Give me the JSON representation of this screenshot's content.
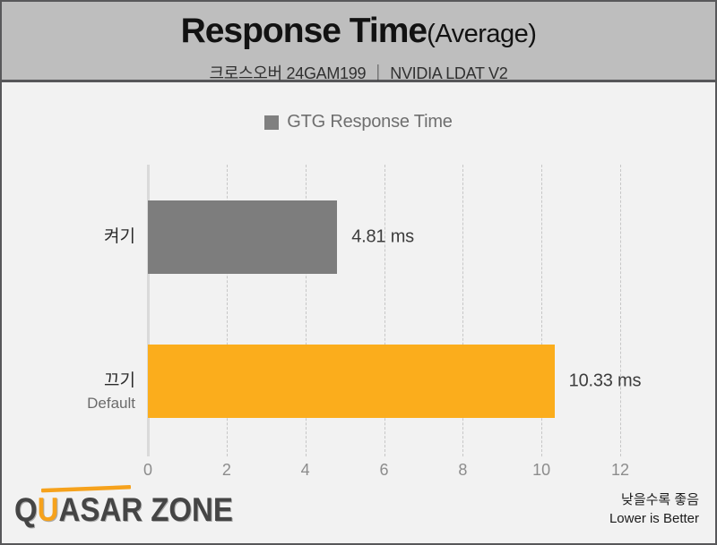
{
  "header": {
    "title": "Response Time",
    "title_suffix": "(Average)",
    "subtitle": "크로스오버 24GAM199 ｜ NVIDIA LDAT V2"
  },
  "legend": {
    "label": "GTG Response Time",
    "swatch_color": "#808080"
  },
  "chart_data": {
    "type": "bar",
    "orientation": "horizontal",
    "title": "Response Time (Average)",
    "subtitle": "크로스오버 24GAM199 ｜ NVIDIA LDAT V2",
    "legend_entries": [
      "GTG Response Time"
    ],
    "legend_position": "top-center",
    "categories": [
      {
        "label": "켜기",
        "sublabel": ""
      },
      {
        "label": "끄기",
        "sublabel": "Default"
      }
    ],
    "values": [
      4.81,
      10.33
    ],
    "value_labels": [
      "4.81 ms",
      "10.33 ms"
    ],
    "bar_colors": [
      "#7d7d7d",
      "#fbad1c"
    ],
    "unit": "ms",
    "xlabel": "",
    "ylabel": "",
    "xlim": [
      0,
      12
    ],
    "xticks": [
      0,
      2,
      4,
      6,
      8,
      10,
      12
    ],
    "grid": "vertical-dashed"
  },
  "footer": {
    "logo_q": "Q",
    "logo_u": "U",
    "logo_rest": "ASAR ZONE",
    "note_ko": "낮을수록 좋음",
    "note_en": "Lower is Better"
  },
  "colors": {
    "header_bg": "#bebebe",
    "body_bg": "#f2f2f2",
    "border": "#58585a",
    "bar_gray": "#7d7d7d",
    "bar_orange": "#fbad1c",
    "logo_accent": "#f6a21c"
  }
}
